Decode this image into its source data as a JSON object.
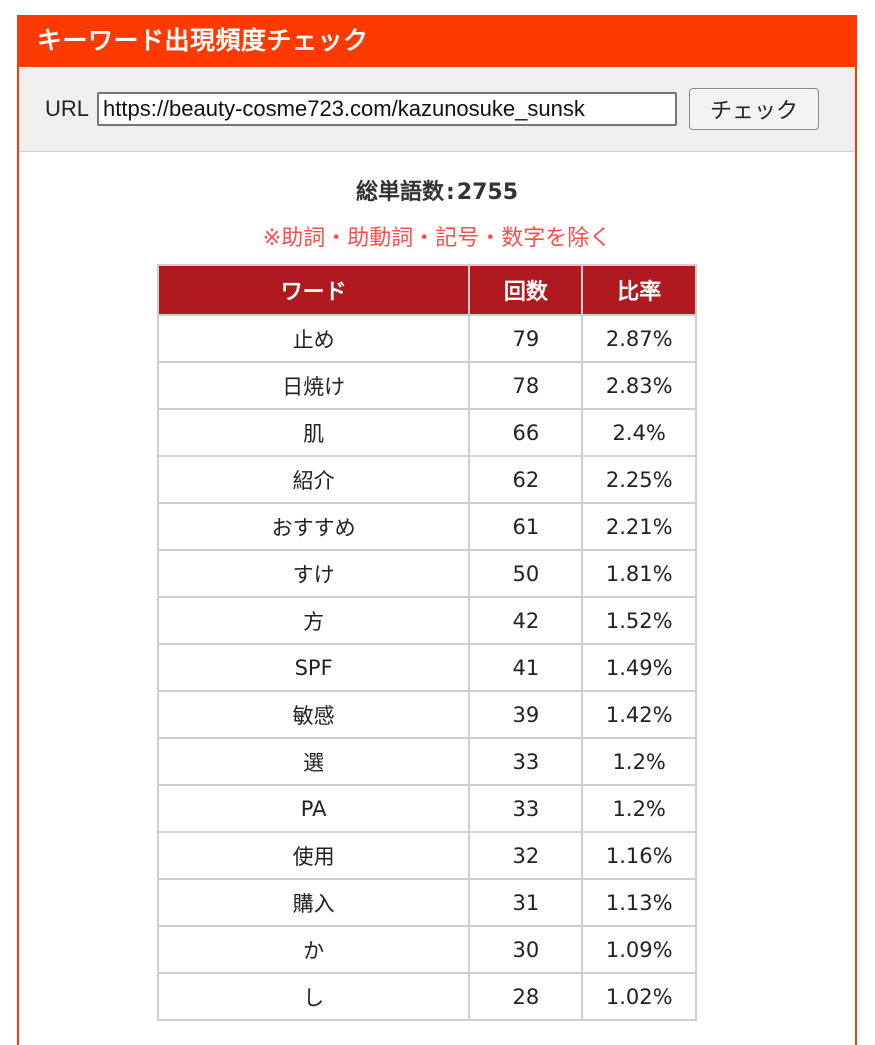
{
  "title": "キーワード出現頻度チェック",
  "url_bar": {
    "label": "URL",
    "value": "https://beauty-cosme723.com/kazunosuke_sunsk",
    "button_label": "チェック"
  },
  "summary": {
    "label": "総単語数",
    "separator": ":",
    "total": "2755"
  },
  "note": "※助詞・助動詞・記号・数字を除く",
  "table": {
    "headers": [
      "ワード",
      "回数",
      "比率"
    ],
    "rows": [
      {
        "word": "止め",
        "count": "79",
        "ratio": "2.87%"
      },
      {
        "word": "日焼け",
        "count": "78",
        "ratio": "2.83%"
      },
      {
        "word": "肌",
        "count": "66",
        "ratio": "2.4%"
      },
      {
        "word": "紹介",
        "count": "62",
        "ratio": "2.25%"
      },
      {
        "word": "おすすめ",
        "count": "61",
        "ratio": "2.21%"
      },
      {
        "word": "すけ",
        "count": "50",
        "ratio": "1.81%"
      },
      {
        "word": "方",
        "count": "42",
        "ratio": "1.52%"
      },
      {
        "word": "SPF",
        "count": "41",
        "ratio": "1.49%"
      },
      {
        "word": "敏感",
        "count": "39",
        "ratio": "1.42%"
      },
      {
        "word": "選",
        "count": "33",
        "ratio": "1.2%"
      },
      {
        "word": "PA",
        "count": "33",
        "ratio": "1.2%"
      },
      {
        "word": "使用",
        "count": "32",
        "ratio": "1.16%"
      },
      {
        "word": "購入",
        "count": "31",
        "ratio": "1.13%"
      },
      {
        "word": "か",
        "count": "30",
        "ratio": "1.09%"
      },
      {
        "word": "し",
        "count": "28",
        "ratio": "1.02%"
      }
    ]
  },
  "colors": {
    "title_bar": "#ff3a00",
    "table_header": "#b0191e",
    "note_text": "#ff4d4d"
  }
}
